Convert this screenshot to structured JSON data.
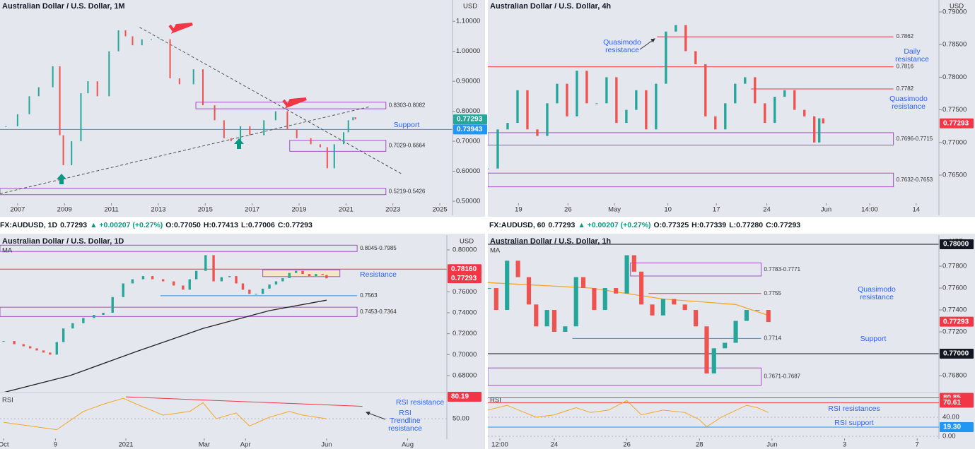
{
  "headers": [
    [
      {
        "text": "FX:AUDUSD, 1D",
        "color": "#131722"
      },
      {
        "text": "0.77293",
        "color": "#131722"
      },
      {
        "text": "▲ +0.00207 (+0.27%)",
        "color": "#089981"
      },
      {
        "text": "O:0.77050",
        "color": "#131722"
      },
      {
        "text": "H:0.77413",
        "color": "#131722"
      },
      {
        "text": "L:0.77006",
        "color": "#131722"
      },
      {
        "text": "C:0.77293",
        "color": "#131722"
      }
    ],
    [
      {
        "text": "FX:AUDUSD, 60",
        "color": "#131722"
      },
      {
        "text": "0.77293",
        "color": "#131722"
      },
      {
        "text": "▲ +0.00207 (+0.27%)",
        "color": "#089981"
      },
      {
        "text": "O:0.77325",
        "color": "#131722"
      },
      {
        "text": "H:0.77339",
        "color": "#131722"
      },
      {
        "text": "L:0.77280",
        "color": "#131722"
      },
      {
        "text": "C:0.77293",
        "color": "#131722"
      }
    ]
  ],
  "panels": [
    {
      "title": "Australian Dollar / U.S. Dollar, 1M",
      "unit": "USD",
      "xlim": [
        2006.25,
        2025.54
      ],
      "xticks": [
        2007,
        2009,
        2011,
        2013,
        2015,
        2017,
        2019,
        2021,
        2023,
        2025
      ],
      "ylim": [
        0.453,
        1.171
      ],
      "yticks": [
        {
          "value": 0.5,
          "label": "0.50000"
        },
        {
          "value": 0.6,
          "label": "0.60000"
        },
        {
          "value": 0.7,
          "label": "0.70000"
        },
        {
          "value": 0.8,
          "label": "0.80000"
        },
        {
          "value": 0.9,
          "label": "0.90000"
        },
        {
          "value": 1.0,
          "label": "1.00000"
        },
        {
          "value": 1.1,
          "label": "1.10000"
        }
      ],
      "series": {
        "x": [
          2006.5,
          2007,
          2007.5,
          2007.9,
          2008.5,
          2008.8,
          2008.95,
          2009.3,
          2009.7,
          2010,
          2010.4,
          2010.9,
          2011.3,
          2011.6,
          2011.9,
          2012.3,
          2012.7,
          2013.1,
          2013.5,
          2013.9,
          2014.5,
          2014.9,
          2015.4,
          2015.8,
          2016.1,
          2016.5,
          2016.9,
          2017.5,
          2018.0,
          2018.5,
          2018.9,
          2019.5,
          2019.9,
          2020.2,
          2020.5,
          2020.9,
          2021.1,
          2021.3,
          2021.4
        ],
        "values": [
          0.75,
          0.79,
          0.85,
          0.88,
          0.95,
          0.72,
          0.62,
          0.7,
          0.86,
          0.9,
          0.85,
          1.0,
          1.07,
          1.05,
          1.02,
          1.04,
          1.04,
          1.04,
          0.91,
          0.89,
          0.94,
          0.82,
          0.77,
          0.71,
          0.7,
          0.75,
          0.72,
          0.77,
          0.8,
          0.74,
          0.71,
          0.69,
          0.68,
          0.61,
          0.69,
          0.73,
          0.77,
          0.78,
          0.773
        ]
      },
      "levels": [
        {
          "value": 0.73943,
          "color": "#2196f3",
          "from": 2006.25,
          "to": 2025.54,
          "labeled": false
        }
      ],
      "zones": [
        {
          "low": 0.8082,
          "high": 0.8303,
          "label": "0.8303-0.8082",
          "from": 2014.6,
          "to": 2022.7
        },
        {
          "low": 0.6664,
          "high": 0.7029,
          "label": "0.7029-0.6664",
          "from": 2018.6,
          "to": 2022.7
        },
        {
          "low": 0.5219,
          "high": 0.5426,
          "label": "0.5219-0.5426",
          "from": 2006.25,
          "to": 2022.7
        }
      ],
      "trendlines": [
        {
          "x": [
            2012.2,
            2023.4
          ],
          "values": [
            1.08,
            0.59
          ],
          "color": "#555"
        },
        {
          "x": [
            2006.25,
            2022.0
          ],
          "values": [
            0.525,
            0.815
          ],
          "color": "#555"
        }
      ],
      "tags": [
        {
          "value": 0.77293,
          "label": "0.77293",
          "color": "#26a69a"
        },
        {
          "value": 0.73943,
          "label": "0.73943",
          "color": "#2196f3"
        }
      ],
      "notes": [
        "Support"
      ]
    },
    {
      "title": "Australian Dollar / U.S. Dollar, 4h",
      "unit": "USD",
      "xlim": [
        0,
        45.6
      ],
      "xticks": [
        {
          "value": 3.1,
          "label": "19"
        },
        {
          "value": 8.1,
          "label": "26"
        },
        {
          "value": 12.8,
          "label": "May"
        },
        {
          "value": 18.2,
          "label": "10"
        },
        {
          "value": 23.1,
          "label": "17"
        },
        {
          "value": 28.2,
          "label": "24"
        },
        {
          "value": 34.2,
          "label": "Jun"
        },
        {
          "value": 38.6,
          "label": "14:00"
        },
        {
          "value": 43.3,
          "label": "14"
        }
      ],
      "ylim": [
        0.75883,
        0.79184
      ],
      "yticks": [
        {
          "value": 0.765,
          "label": "0.76500"
        },
        {
          "value": 0.77,
          "label": "0.77000"
        },
        {
          "value": 0.775,
          "label": "0.77500"
        },
        {
          "value": 0.78,
          "label": "0.78000"
        },
        {
          "value": 0.785,
          "label": "0.78500"
        },
        {
          "value": 0.79,
          "label": "0.79000"
        }
      ],
      "series": {
        "x": [
          0,
          1,
          2,
          3,
          4,
          5,
          6,
          7,
          8,
          9,
          10,
          11,
          12,
          13,
          14,
          15,
          16,
          17,
          18,
          19,
          20,
          21,
          22,
          23,
          24,
          25,
          26,
          27,
          28,
          29,
          30,
          31,
          32,
          33,
          33.5,
          33.9
        ],
        "values": [
          0.766,
          0.772,
          0.773,
          0.778,
          0.772,
          0.771,
          0.776,
          0.779,
          0.774,
          0.781,
          0.776,
          0.776,
          0.78,
          0.773,
          0.775,
          0.778,
          0.772,
          0.779,
          0.787,
          0.788,
          0.784,
          0.782,
          0.774,
          0.772,
          0.776,
          0.779,
          0.78,
          0.776,
          0.773,
          0.777,
          0.778,
          0.775,
          0.774,
          0.77,
          0.7737,
          0.77293
        ]
      },
      "levels": [
        {
          "value": 0.7862,
          "color": "#f23645",
          "from": 17.1,
          "to": 41,
          "labeled": true
        },
        {
          "value": 0.7816,
          "color": "#f23645",
          "from": 0,
          "to": 41,
          "labeled": true
        },
        {
          "value": 0.7782,
          "color": "#f23645",
          "from": 26.6,
          "to": 41,
          "labeled": true
        }
      ],
      "zones": [
        {
          "low": 0.7696,
          "high": 0.7715,
          "label": "0.7696-0.7715",
          "from": 0,
          "to": 41
        },
        {
          "low": 0.7632,
          "high": 0.7653,
          "label": "0.7632-0.7653",
          "from": 0,
          "to": 41
        }
      ],
      "trendlines": [],
      "tags": [
        {
          "value": 0.77293,
          "label": "0.77293",
          "color": "#f23645"
        }
      ],
      "notes": [
        "Quasimodo\nresistance",
        "Daily\nresistance",
        "Quasimodo\nresistance"
      ]
    },
    {
      "title": "Australian Dollar / U.S. Dollar, 1D",
      "unit": "USD",
      "xlim": [
        -2.7,
        333.5
      ],
      "xticks": [
        {
          "value": 0,
          "label": "Oct"
        },
        {
          "value": 39,
          "label": "9"
        },
        {
          "value": 92,
          "label": "2021"
        },
        {
          "value": 151,
          "label": "Mar"
        },
        {
          "value": 182,
          "label": "Apr"
        },
        {
          "value": 243,
          "label": "Jun"
        },
        {
          "value": 304,
          "label": "Aug"
        }
      ],
      "ylim": [
        0.6645,
        0.81416
      ],
      "yticks": [
        {
          "value": 0.68,
          "label": "0.68000"
        },
        {
          "value": 0.7,
          "label": "0.70000"
        },
        {
          "value": 0.72,
          "label": "0.72000"
        },
        {
          "value": 0.74,
          "label": "0.74000"
        },
        {
          "value": 0.76,
          "label": "0.76000"
        },
        {
          "value": 0.8,
          "label": "0.80000"
        }
      ],
      "series": {
        "x": [
          0,
          8,
          15,
          20,
          25,
          30,
          35,
          40,
          45,
          52,
          60,
          68,
          75,
          82,
          90,
          97,
          105,
          112,
          120,
          128,
          135,
          140,
          145,
          152,
          158,
          164,
          170,
          175,
          180,
          185,
          190,
          195,
          200,
          205,
          210,
          215,
          220,
          225,
          230,
          235,
          240,
          243
        ],
        "values": [
          0.713,
          0.71,
          0.708,
          0.706,
          0.704,
          0.702,
          0.7,
          0.712,
          0.725,
          0.73,
          0.735,
          0.738,
          0.74,
          0.755,
          0.768,
          0.772,
          0.775,
          0.772,
          0.77,
          0.766,
          0.762,
          0.772,
          0.78,
          0.795,
          0.77,
          0.774,
          0.775,
          0.768,
          0.762,
          0.758,
          0.758,
          0.763,
          0.767,
          0.77,
          0.773,
          0.778,
          0.78,
          0.777,
          0.775,
          0.777,
          0.776,
          0.7729
        ]
      },
      "ma": {
        "name": "MA",
        "color": "#222",
        "x": [
          -2.7,
          50,
          100,
          150,
          200,
          243
        ],
        "values": [
          0.663,
          0.68,
          0.703,
          0.725,
          0.742,
          0.752
        ]
      },
      "levels": [
        {
          "value": 0.7816,
          "color": "#f23645",
          "from": -2.7,
          "to": 333.5,
          "labeled": false
        },
        {
          "value": 0.7563,
          "color": "#2196f3",
          "from": 118,
          "to": 266,
          "labeled": true
        }
      ],
      "zones": [
        {
          "low": 0.7985,
          "high": 0.8045,
          "label": "0.8045-0.7985",
          "from": -2.7,
          "to": 266
        },
        {
          "low": 0.7364,
          "high": 0.7453,
          "label": "0.7453-0.7364",
          "from": -2.7,
          "to": 266
        },
        {
          "low": 0.7745,
          "high": 0.781,
          "from": 195,
          "to": 253,
          "fill": "#f5e9b8"
        }
      ],
      "trendlines": [],
      "tags": [
        {
          "value": 0.7816,
          "label": "0.78160",
          "color": "#f23645"
        },
        {
          "value": 0.77293,
          "label": "0.77293",
          "color": "#f23645"
        }
      ],
      "notes": [
        "Resistance"
      ],
      "rsi": {
        "name": "RSI",
        "ylim": [
          22,
          85
        ],
        "yticks": [
          {
            "value": 50,
            "label": "50.00"
          }
        ],
        "x": [
          0,
          20,
          40,
          60,
          75,
          90,
          100,
          120,
          140,
          150,
          160,
          175,
          185,
          200,
          215,
          225,
          243
        ],
        "values": [
          45,
          40,
          35,
          60,
          70,
          78,
          70,
          55,
          60,
          72,
          50,
          58,
          40,
          52,
          60,
          55,
          50
        ],
        "levels": [],
        "trendlines": [
          {
            "x": [
              92,
              270
            ],
            "values": [
              80,
              67
            ],
            "color": "#f23645"
          }
        ],
        "tags": [
          {
            "value": 80.19,
            "label": "80.19",
            "color": "#f23645"
          }
        ],
        "notes": [
          "RSI resistance",
          "RSI\nTrendline\nresistance"
        ]
      }
    },
    {
      "title": "Australian Dollar / U.S. Dollar, 1h",
      "unit": "USD",
      "xlim": [
        -0.83,
        11.6
      ],
      "xticks": [
        {
          "value": -0.5,
          "label": "12:00"
        },
        {
          "value": 1,
          "label": "24"
        },
        {
          "value": 3,
          "label": "26"
        },
        {
          "value": 5,
          "label": "28"
        },
        {
          "value": 7,
          "label": "Jun"
        },
        {
          "value": 9,
          "label": "3"
        },
        {
          "value": 11,
          "label": "7"
        }
      ],
      "ylim": [
        0.76652,
        0.78084
      ],
      "yticks": [
        {
          "value": 0.768,
          "label": "0.76800"
        },
        {
          "value": 0.772,
          "label": "0.77200"
        },
        {
          "value": 0.774,
          "label": "0.77400"
        },
        {
          "value": 0.776,
          "label": "0.77600"
        },
        {
          "value": 0.778,
          "label": "0.77800"
        }
      ],
      "series": {
        "x": [
          -0.8,
          -0.6,
          -0.3,
          0,
          0.3,
          0.5,
          0.8,
          1.0,
          1.3,
          1.6,
          1.8,
          2.1,
          2.4,
          2.7,
          3.0,
          3.2,
          3.4,
          3.7,
          4.0,
          4.3,
          4.6,
          4.9,
          5.2,
          5.4,
          5.7,
          6.0,
          6.3,
          6.6,
          6.9
        ],
        "values": [
          0.776,
          0.774,
          0.7785,
          0.777,
          0.7745,
          0.7725,
          0.774,
          0.772,
          0.7725,
          0.777,
          0.776,
          0.774,
          0.776,
          0.7755,
          0.779,
          0.7775,
          0.7745,
          0.7735,
          0.775,
          0.7745,
          0.774,
          0.7725,
          0.7682,
          0.7705,
          0.771,
          0.773,
          0.774,
          0.774,
          0.7729
        ]
      },
      "ma": {
        "name": "MA",
        "color": "#f5a623",
        "x": [
          -0.83,
          2,
          4,
          6,
          6.9
        ],
        "values": [
          0.7765,
          0.776,
          0.775,
          0.7745,
          0.7735
        ]
      },
      "levels": [
        {
          "value": 0.78,
          "color": "#131722",
          "from": -0.83,
          "to": 11.6,
          "labeled": false
        },
        {
          "value": 0.7755,
          "color": "#f23645",
          "from": 3.6,
          "to": 6.7,
          "labeled": true
        },
        {
          "value": 0.7714,
          "color": "#2196f3",
          "from": 1.5,
          "to": 6.7,
          "labeled": true
        },
        {
          "value": 0.77,
          "color": "#131722",
          "from": -0.83,
          "to": 11.6,
          "labeled": false
        }
      ],
      "zones": [
        {
          "low": 0.7771,
          "high": 0.7783,
          "label": "0.7783-0.7771",
          "from": 3.1,
          "to": 6.7
        },
        {
          "low": 0.7671,
          "high": 0.7687,
          "label": "0.7671-0.7687",
          "from": -0.83,
          "to": 6.7
        }
      ],
      "trendlines": [],
      "tags": [
        {
          "value": 0.78,
          "label": "0.78000",
          "color": "#131722"
        },
        {
          "value": 0.77293,
          "label": "0.77293",
          "color": "#f23645"
        },
        {
          "value": 0.77,
          "label": "0.77000",
          "color": "#131722"
        }
      ],
      "notes": [
        "Quasimodo\nresistance",
        "Support"
      ],
      "rsi": {
        "name": "RSI",
        "ylim": [
          -5.9,
          90.4
        ],
        "yticks": [
          {
            "value": 40,
            "label": "40.00"
          },
          {
            "value": 0,
            "label": "0.00"
          }
        ],
        "x": [
          -0.83,
          -0.3,
          0.5,
          1,
          1.6,
          2,
          2.5,
          3,
          3.4,
          4,
          4.6,
          5.0,
          5.2,
          5.6,
          6.3,
          6.6,
          6.9
        ],
        "values": [
          55,
          65,
          40,
          45,
          60,
          50,
          55,
          75,
          45,
          55,
          50,
          35,
          20,
          40,
          65,
          60,
          50
        ],
        "levels": [
          {
            "value": 80.85,
            "color": "#f23645"
          },
          {
            "value": 70.61,
            "color": "#f23645"
          },
          {
            "value": 19.3,
            "color": "#2196f3"
          }
        ],
        "trendlines": [],
        "tags": [
          {
            "value": 80.85,
            "label": "80.85",
            "color": "#f23645"
          },
          {
            "value": 70.61,
            "label": "70.61",
            "color": "#f23645"
          },
          {
            "value": 19.3,
            "label": "19.30",
            "color": "#2196f3"
          }
        ],
        "notes": [
          "RSI resistances",
          "RSI support"
        ]
      }
    }
  ]
}
